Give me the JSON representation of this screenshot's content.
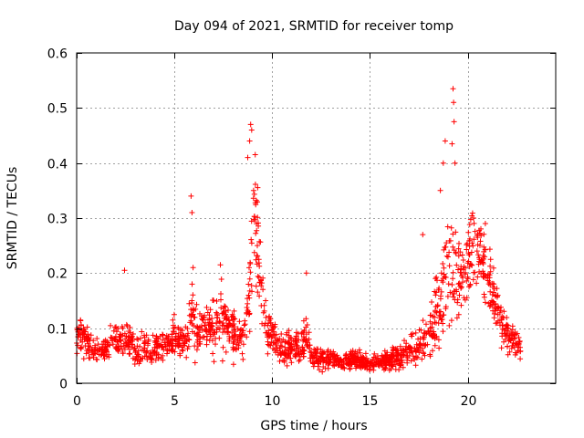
{
  "chart_data": {
    "type": "scatter",
    "title": "Day 094 of 2021, SRMTID for receiver tomp",
    "xlabel": "GPS time / hours",
    "ylabel": "SRMTID / TECUs",
    "xlim": [
      0,
      24.5
    ],
    "ylim": [
      0,
      0.6
    ],
    "xticks": [
      0,
      5,
      10,
      15,
      20
    ],
    "xtick_labels": [
      "0",
      "5",
      "10",
      "15",
      "20"
    ],
    "yticks": [
      0,
      0.1,
      0.2,
      0.3,
      0.4,
      0.5,
      0.6
    ],
    "ytick_labels": [
      "0",
      "0.1",
      "0.2",
      "0.3",
      "0.4",
      "0.5",
      "0.6"
    ],
    "grid": true,
    "marker": "+",
    "color": "#ff0000",
    "envelope": {
      "x": [
        0,
        0.5,
        1,
        1.5,
        2,
        2.5,
        3,
        3.5,
        4,
        4.5,
        5,
        5.5,
        5.9,
        6.2,
        6.6,
        7,
        7.4,
        7.8,
        8.2,
        8.6,
        8.85,
        9.0,
        9.15,
        9.4,
        9.7,
        10,
        10.5,
        11,
        11.5,
        11.75,
        12,
        12.5,
        13,
        13.5,
        14,
        14.5,
        15,
        15.5,
        16,
        16.5,
        17,
        17.5,
        17.8,
        18.2,
        18.6,
        18.9,
        19.1,
        19.3,
        19.5,
        19.7,
        20,
        20.3,
        20.6,
        21,
        21.3,
        21.7,
        22,
        22.3,
        22.7
      ],
      "y": [
        0.09,
        0.08,
        0.06,
        0.07,
        0.075,
        0.085,
        0.06,
        0.065,
        0.06,
        0.07,
        0.085,
        0.07,
        0.14,
        0.09,
        0.11,
        0.1,
        0.12,
        0.1,
        0.08,
        0.09,
        0.18,
        0.28,
        0.32,
        0.18,
        0.1,
        0.09,
        0.06,
        0.065,
        0.06,
        0.09,
        0.05,
        0.045,
        0.045,
        0.04,
        0.04,
        0.04,
        0.035,
        0.04,
        0.045,
        0.05,
        0.055,
        0.06,
        0.08,
        0.1,
        0.15,
        0.2,
        0.24,
        0.22,
        0.2,
        0.19,
        0.22,
        0.24,
        0.23,
        0.2,
        0.16,
        0.11,
        0.09,
        0.08,
        0.065
      ],
      "spread": [
        0.03,
        0.025,
        0.02,
        0.02,
        0.02,
        0.025,
        0.02,
        0.02,
        0.02,
        0.02,
        0.025,
        0.02,
        0.07,
        0.03,
        0.04,
        0.04,
        0.05,
        0.04,
        0.03,
        0.03,
        0.07,
        0.08,
        0.09,
        0.05,
        0.03,
        0.025,
        0.02,
        0.025,
        0.02,
        0.04,
        0.015,
        0.015,
        0.015,
        0.013,
        0.013,
        0.013,
        0.012,
        0.013,
        0.015,
        0.018,
        0.02,
        0.025,
        0.03,
        0.04,
        0.06,
        0.07,
        0.09,
        0.1,
        0.08,
        0.07,
        0.06,
        0.06,
        0.06,
        0.05,
        0.04,
        0.03,
        0.025,
        0.02,
        0.015
      ]
    },
    "peaks": [
      {
        "x": 2.45,
        "y": 0.205
      },
      {
        "x": 5.85,
        "y": 0.34
      },
      {
        "x": 5.9,
        "y": 0.31
      },
      {
        "x": 7.35,
        "y": 0.215
      },
      {
        "x": 8.9,
        "y": 0.47
      },
      {
        "x": 8.95,
        "y": 0.46
      },
      {
        "x": 8.85,
        "y": 0.44
      },
      {
        "x": 8.75,
        "y": 0.41
      },
      {
        "x": 9.05,
        "y": 0.35
      },
      {
        "x": 11.75,
        "y": 0.2
      },
      {
        "x": 17.7,
        "y": 0.27
      },
      {
        "x": 18.6,
        "y": 0.35
      },
      {
        "x": 18.75,
        "y": 0.4
      },
      {
        "x": 18.85,
        "y": 0.44
      },
      {
        "x": 19.25,
        "y": 0.535
      },
      {
        "x": 19.28,
        "y": 0.51
      },
      {
        "x": 19.3,
        "y": 0.475
      },
      {
        "x": 19.2,
        "y": 0.435
      },
      {
        "x": 19.35,
        "y": 0.4
      },
      {
        "x": 20.3,
        "y": 0.3
      },
      {
        "x": 20.9,
        "y": 0.29
      }
    ]
  }
}
